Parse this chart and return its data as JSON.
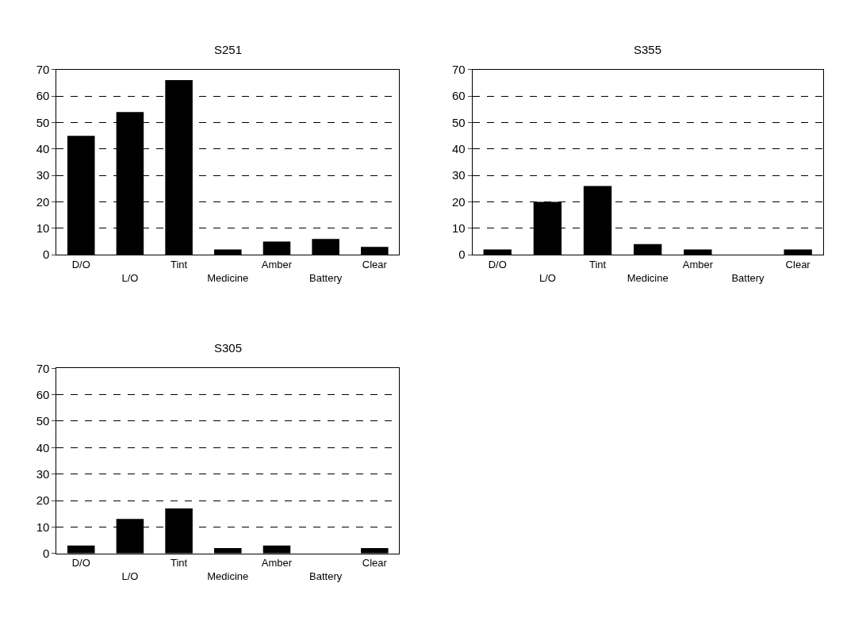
{
  "chart_data": [
    {
      "type": "bar",
      "title": "S251",
      "categories": [
        "D/O",
        "L/O",
        "Tint",
        "Medicine",
        "Amber",
        "Battery",
        "Clear"
      ],
      "values": [
        45,
        54,
        66,
        2,
        5,
        6,
        3
      ],
      "color": "#000000",
      "ylim": [
        0,
        70
      ],
      "yticks": [
        0,
        10,
        20,
        30,
        40,
        50,
        60,
        70
      ],
      "grid": "y",
      "line_style": "dashed"
    },
    {
      "type": "bar",
      "title": "S355",
      "categories": [
        "D/O",
        "L/O",
        "Tint",
        "Medicine",
        "Amber",
        "Battery",
        "Clear"
      ],
      "values": [
        2,
        20,
        26,
        4,
        2,
        0,
        2
      ],
      "color": "#000000",
      "ylim": [
        0,
        70
      ],
      "yticks": [
        0,
        10,
        20,
        30,
        40,
        50,
        60,
        70
      ],
      "grid": "y",
      "line_style": "dashed"
    },
    {
      "type": "bar",
      "title": "S305",
      "categories": [
        "D/O",
        "L/O",
        "Tint",
        "Medicine",
        "Amber",
        "Battery",
        "Clear"
      ],
      "values": [
        3,
        13,
        17,
        2,
        3,
        0,
        2
      ],
      "color": "#000000",
      "ylim": [
        0,
        70
      ],
      "yticks": [
        0,
        10,
        20,
        30,
        40,
        50,
        60,
        70
      ],
      "grid": "y",
      "line_style": "dashed"
    }
  ]
}
